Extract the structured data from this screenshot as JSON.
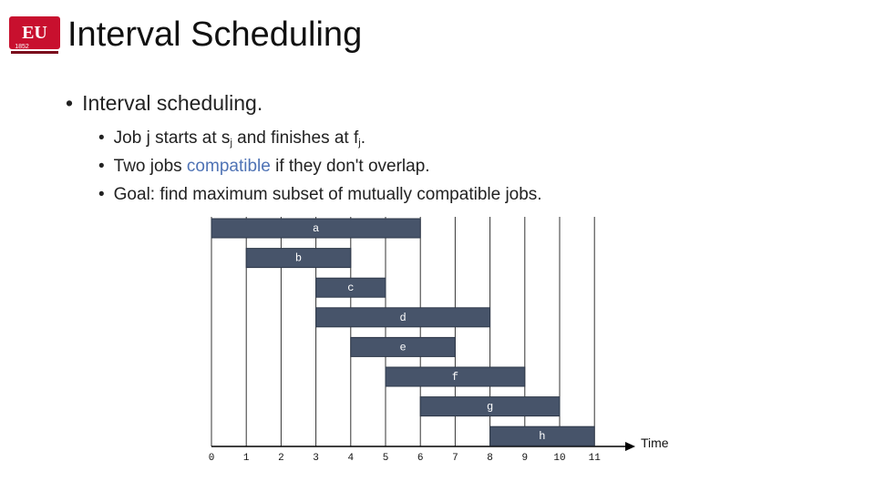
{
  "header": {
    "logo_text": "EU",
    "logo_year": "1852",
    "title": "Interval Scheduling"
  },
  "bullets": {
    "main": "Interval scheduling.",
    "sub1_a": "Job j starts at s",
    "sub1_s": "j",
    "sub1_b": " and finishes at f",
    "sub1_f": "j",
    "sub1_c": ".",
    "sub2_a": "Two jobs ",
    "sub2_accent": "compatible",
    "sub2_b": " if they don't overlap.",
    "sub3": "Goal: find maximum subset of mutually compatible jobs."
  },
  "colors": {
    "bar": "#47546a",
    "bar_stroke": "#2e3849",
    "accent": "#4f73b5",
    "logo_red": "#c8102e"
  },
  "timeline": {
    "axis_label": "Time",
    "ticks": [
      "0",
      "1",
      "2",
      "3",
      "4",
      "5",
      "6",
      "7",
      "8",
      "9",
      "10",
      "11"
    ],
    "jobs": [
      {
        "label": "a",
        "start": 0,
        "end": 6
      },
      {
        "label": "b",
        "start": 1,
        "end": 4
      },
      {
        "label": "c",
        "start": 3,
        "end": 5
      },
      {
        "label": "d",
        "start": 3,
        "end": 8
      },
      {
        "label": "e",
        "start": 4,
        "end": 7
      },
      {
        "label": "f",
        "start": 5,
        "end": 9
      },
      {
        "label": "g",
        "start": 6,
        "end": 10
      },
      {
        "label": "h",
        "start": 8,
        "end": 11
      }
    ]
  }
}
